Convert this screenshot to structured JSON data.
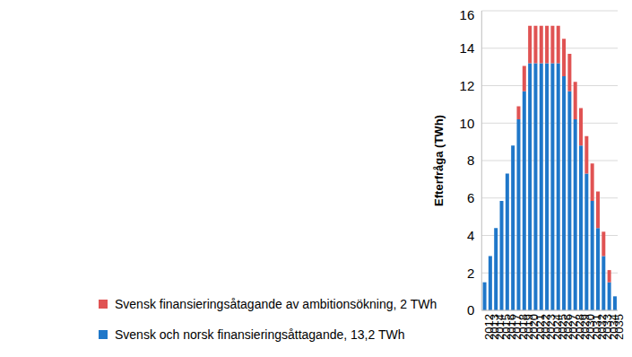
{
  "chart_data": {
    "type": "bar",
    "stacked": true,
    "grid": true,
    "legend": "bottom",
    "ylabel": "Efterfråga (TWh)",
    "categories": [
      "2012",
      "2013",
      "2014",
      "2015",
      "2016",
      "2017",
      "2018",
      "2019",
      "2020",
      "2021",
      "2022",
      "2023",
      "2024",
      "2025",
      "2026",
      "2027",
      "2028",
      "2029",
      "2030",
      "2031",
      "2032",
      "2033",
      "2034",
      "2035"
    ],
    "ylim": [
      0,
      16
    ],
    "yticks": [
      0,
      2,
      4,
      6,
      8,
      10,
      12,
      14,
      16
    ],
    "series": [
      {
        "name": "Svensk och norsk finansieringsåttagande, 13,2 TWh",
        "color": "#1f77c9",
        "values": [
          1.5,
          2.9,
          4.4,
          5.85,
          7.3,
          8.8,
          10.2,
          11.7,
          13.2,
          13.2,
          13.2,
          13.2,
          13.2,
          13.2,
          12.5,
          11.7,
          10.2,
          8.8,
          7.3,
          5.85,
          4.4,
          2.9,
          1.5,
          0.75
        ]
      },
      {
        "name": "Svensk finansieringsåtagande av ambitionsökning, 2 TWh",
        "color": "#e05353",
        "values": [
          0,
          0,
          0,
          0,
          0,
          0,
          0.7,
          1.35,
          2.0,
          2.0,
          2.0,
          2.0,
          2.0,
          2.0,
          2.0,
          2.0,
          2.0,
          2.0,
          2.0,
          2.0,
          1.95,
          1.3,
          0.65,
          0
        ]
      }
    ]
  }
}
